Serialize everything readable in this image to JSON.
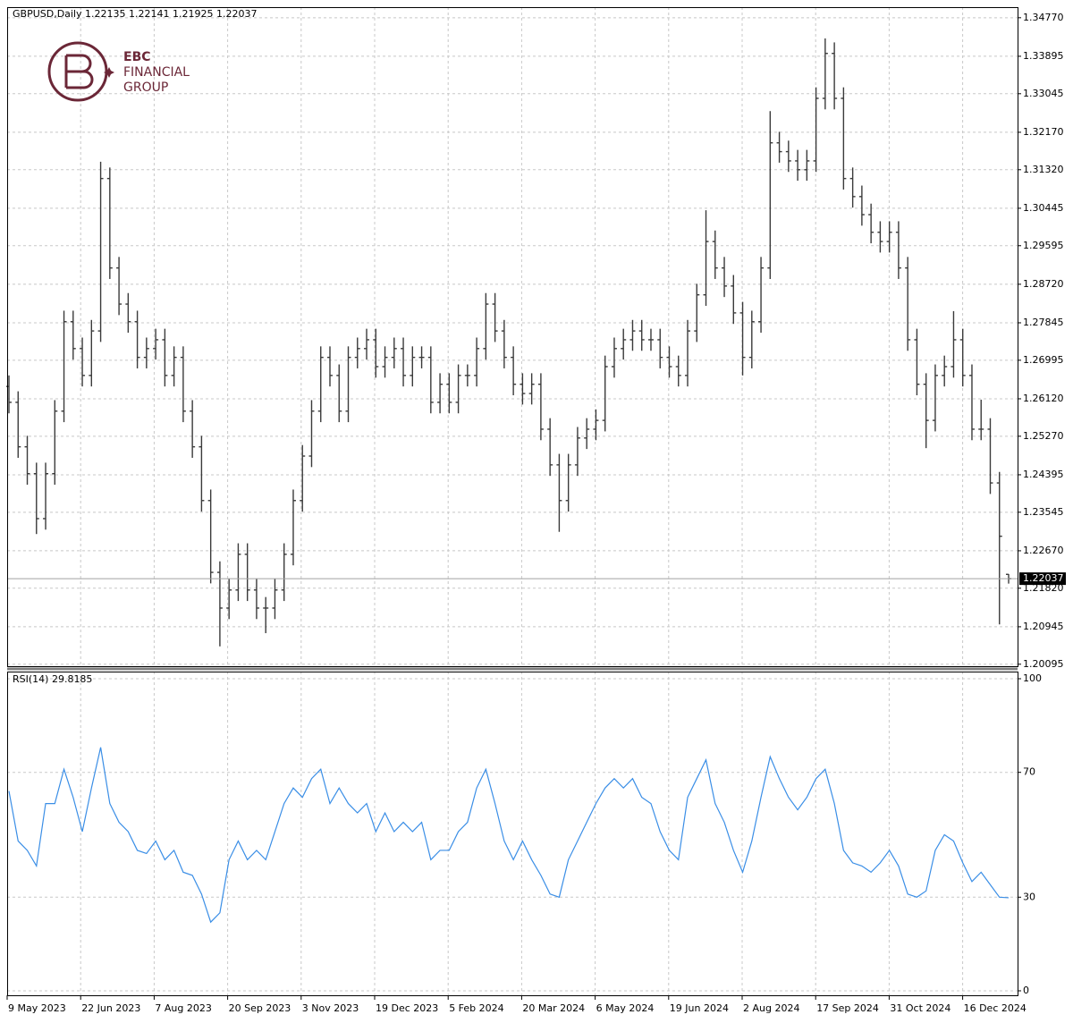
{
  "chart_data": [
    {
      "type": "ohlc",
      "title": "GBPUSD,Daily  1.22135 1.22141 1.21925 1.22037",
      "color": "#3a3a3a",
      "open": [
        1.264,
        1.2604,
        1.2503,
        1.2442,
        1.234,
        1.2442,
        1.2584,
        1.2787,
        1.2726,
        1.2665,
        1.2766,
        1.3112,
        1.2909,
        1.2827,
        1.2787,
        1.2706,
        1.2726,
        1.2746,
        1.2665,
        1.2706,
        1.2584,
        1.2503,
        1.2381,
        1.2218,
        1.2137,
        1.2178,
        1.2259,
        1.2178,
        1.2137,
        1.2137,
        1.2178,
        1.2259,
        1.2381,
        1.2482,
        1.2584,
        1.2706,
        1.2665,
        1.2584,
        1.2706,
        1.2726,
        1.2746,
        1.2685,
        1.2706,
        1.2726,
        1.2665,
        1.2706,
        1.2706,
        1.2604,
        1.2645,
        1.2604,
        1.2665,
        1.2665,
        1.2726,
        1.2827,
        1.2766,
        1.2706,
        1.2645,
        1.2624,
        1.2645,
        1.2543,
        1.2462,
        1.2381,
        1.2462,
        1.2523,
        1.2543,
        1.2563,
        1.2685,
        1.2726,
        1.2746,
        1.2766,
        1.2746,
        1.2746,
        1.2706,
        1.2685,
        1.2665,
        1.2766,
        1.2848,
        1.2969,
        1.2909,
        1.2868,
        1.2807,
        1.2706,
        1.2787,
        1.2909,
        1.3193,
        1.3173,
        1.3152,
        1.3132,
        1.3152,
        1.3294,
        1.3396,
        1.3294,
        1.3112,
        1.3071,
        1.303,
        1.299,
        1.2969,
        1.299,
        1.2909,
        1.2746,
        1.2645,
        1.2563,
        1.2665,
        1.2685,
        1.2746,
        1.2665,
        1.2543,
        1.2543,
        1.2421,
        1.22135
      ],
      "high": [
        1.2665,
        1.2629,
        1.2528,
        1.2467,
        1.2467,
        1.2609,
        1.2812,
        1.2812,
        1.2751,
        1.2791,
        1.315,
        1.3137,
        1.2934,
        1.2852,
        1.2812,
        1.2751,
        1.2771,
        1.2771,
        1.2731,
        1.2731,
        1.2609,
        1.2528,
        1.2406,
        1.2243,
        1.2203,
        1.2284,
        1.2284,
        1.2203,
        1.2162,
        1.2203,
        1.2284,
        1.2406,
        1.2507,
        1.2609,
        1.2731,
        1.2731,
        1.269,
        1.2731,
        1.2751,
        1.2771,
        1.2771,
        1.2731,
        1.2751,
        1.2751,
        1.2731,
        1.2731,
        1.2731,
        1.267,
        1.267,
        1.269,
        1.269,
        1.2751,
        1.2852,
        1.2852,
        1.2791,
        1.2731,
        1.267,
        1.267,
        1.267,
        1.2568,
        1.2487,
        1.2487,
        1.2548,
        1.2568,
        1.2588,
        1.271,
        1.2751,
        1.2771,
        1.2791,
        1.2791,
        1.2771,
        1.2771,
        1.2731,
        1.271,
        1.2791,
        1.2873,
        1.304,
        1.2994,
        1.2934,
        1.2893,
        1.2832,
        1.2812,
        1.2934,
        1.3265,
        1.3218,
        1.3198,
        1.3177,
        1.3177,
        1.3319,
        1.343,
        1.3421,
        1.3319,
        1.3137,
        1.3096,
        1.3055,
        1.3015,
        1.3015,
        1.3015,
        1.2934,
        1.2771,
        1.267,
        1.269,
        1.271,
        1.2811,
        1.2771,
        1.269,
        1.261,
        1.2568,
        1.2446,
        1.22141
      ],
      "low": [
        1.2579,
        1.2478,
        1.2417,
        1.2305,
        1.2315,
        1.2417,
        1.2559,
        1.2701,
        1.264,
        1.264,
        1.2741,
        1.2884,
        1.2802,
        1.2762,
        1.2681,
        1.2681,
        1.2701,
        1.264,
        1.264,
        1.2559,
        1.2478,
        1.2356,
        1.2193,
        1.205,
        1.2112,
        1.2153,
        1.2153,
        1.2112,
        1.208,
        1.2112,
        1.2153,
        1.2234,
        1.2356,
        1.2457,
        1.2559,
        1.264,
        1.2559,
        1.2559,
        1.2681,
        1.2701,
        1.266,
        1.266,
        1.2681,
        1.264,
        1.264,
        1.2681,
        1.2579,
        1.2579,
        1.2579,
        1.2579,
        1.264,
        1.264,
        1.2701,
        1.2741,
        1.2681,
        1.262,
        1.2599,
        1.2599,
        1.2518,
        1.2437,
        1.231,
        1.2356,
        1.2437,
        1.2498,
        1.2518,
        1.2538,
        1.266,
        1.2701,
        1.2721,
        1.2721,
        1.2721,
        1.2681,
        1.266,
        1.264,
        1.264,
        1.2741,
        1.2823,
        1.2884,
        1.2843,
        1.2782,
        1.2665,
        1.2681,
        1.2762,
        1.2884,
        1.3148,
        1.3127,
        1.3107,
        1.3107,
        1.3127,
        1.3269,
        1.3269,
        1.3087,
        1.3046,
        1.3005,
        1.2965,
        1.2944,
        1.2944,
        1.2884,
        1.2721,
        1.262,
        1.25,
        1.2538,
        1.264,
        1.266,
        1.264,
        1.2518,
        1.2518,
        1.2396,
        1.21,
        1.21925
      ],
      "close": [
        1.2604,
        1.2503,
        1.2442,
        1.234,
        1.2442,
        1.2584,
        1.2787,
        1.2726,
        1.2665,
        1.2766,
        1.3112,
        1.2909,
        1.2827,
        1.2787,
        1.2706,
        1.2726,
        1.2746,
        1.2665,
        1.2706,
        1.2584,
        1.2503,
        1.2381,
        1.2218,
        1.2137,
        1.2178,
        1.2259,
        1.2178,
        1.2137,
        1.2137,
        1.2178,
        1.2259,
        1.2381,
        1.2482,
        1.2584,
        1.2706,
        1.2665,
        1.2584,
        1.2706,
        1.2726,
        1.2746,
        1.2685,
        1.2706,
        1.2726,
        1.2665,
        1.2706,
        1.2706,
        1.2604,
        1.2645,
        1.2604,
        1.2665,
        1.2665,
        1.2726,
        1.2827,
        1.2766,
        1.2706,
        1.2645,
        1.2624,
        1.2645,
        1.2543,
        1.2462,
        1.2381,
        1.2462,
        1.2523,
        1.2543,
        1.2563,
        1.2685,
        1.2726,
        1.2746,
        1.2766,
        1.2746,
        1.2746,
        1.2706,
        1.2685,
        1.2665,
        1.2766,
        1.2848,
        1.2969,
        1.2909,
        1.2868,
        1.2807,
        1.2706,
        1.2787,
        1.2909,
        1.3193,
        1.3173,
        1.3152,
        1.3132,
        1.3152,
        1.3294,
        1.3396,
        1.3294,
        1.3112,
        1.3071,
        1.303,
        1.299,
        1.2969,
        1.299,
        1.2909,
        1.2746,
        1.2645,
        1.2563,
        1.2665,
        1.2685,
        1.2746,
        1.2665,
        1.2543,
        1.2543,
        1.2421,
        1.23,
        1.22037
      ],
      "current_price": 1.22037,
      "ylim": [
        1.2005,
        1.3501
      ],
      "yticks": [
        1.20095,
        1.20945,
        {
          "value": 1.2182,
          "label": "1.21820"
        },
        {
          "value": 1.2267,
          "label": "1.22670"
        },
        1.23545,
        1.24395,
        {
          "value": 1.2527,
          "label": "1.25270"
        },
        {
          "value": 1.2612,
          "label": "1.26120"
        },
        1.26995,
        1.27845,
        {
          "value": 1.2872,
          "label": "1.28720"
        },
        1.29595,
        1.30445,
        {
          "value": 1.3132,
          "label": "1.31320"
        },
        {
          "value": 1.3217,
          "label": "1.32170"
        },
        1.33045,
        1.33895,
        {
          "value": 1.3477,
          "label": "1.34770"
        }
      ],
      "grid": true,
      "watermark": [
        "EBC",
        "FINANCIAL",
        "GROUP"
      ]
    },
    {
      "type": "line",
      "title": "RSI(14) 29.8185",
      "color": "#3a8ee6",
      "values": [
        64,
        48,
        45,
        40,
        60,
        60,
        71,
        62,
        51,
        65,
        78,
        60,
        54,
        51,
        45,
        44,
        48,
        42,
        45,
        38,
        37,
        31,
        22,
        25,
        42,
        48,
        42,
        45,
        42,
        51,
        60,
        65,
        62,
        68,
        71,
        60,
        65,
        60,
        57,
        60,
        51,
        57,
        51,
        54,
        51,
        54,
        42,
        45,
        45,
        51,
        54,
        65,
        71,
        60,
        48,
        42,
        48,
        42,
        37,
        31,
        30,
        42,
        48,
        54,
        60,
        65,
        68,
        65,
        68,
        62,
        60,
        51,
        45,
        42,
        62,
        68,
        74,
        60,
        54,
        45,
        38,
        48,
        62,
        75,
        68,
        62,
        58,
        62,
        68,
        71,
        60,
        45,
        41,
        40,
        38,
        41,
        45,
        40,
        31,
        30,
        32,
        45,
        50,
        48,
        41,
        35,
        38,
        34,
        30,
        29.8185
      ],
      "ylim": [
        0,
        100
      ],
      "yticks": [
        100,
        70,
        30,
        0
      ],
      "grid": true,
      "xticks": [
        "9 May 2023",
        "22 Jun 2023",
        "7 Aug 2023",
        "20 Sep 2023",
        "3 Nov 2023",
        "19 Dec 2023",
        "5 Feb 2024",
        "20 Mar 2024",
        "6 May 2024",
        "19 Jun 2024",
        "2 Aug 2024",
        "17 Sep 2024",
        "31 Oct 2024",
        "16 Dec 2024"
      ]
    }
  ]
}
